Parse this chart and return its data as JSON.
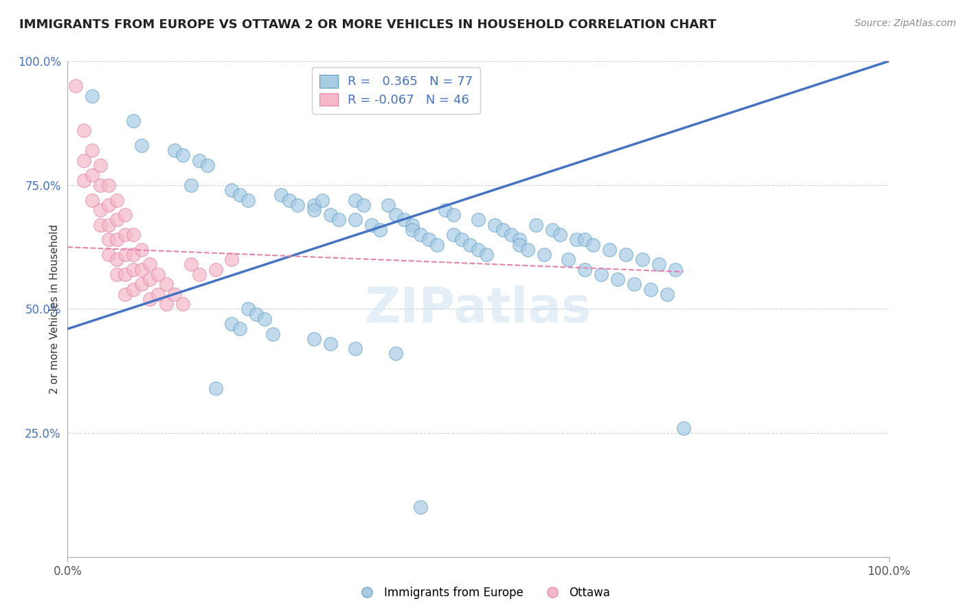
{
  "title": "IMMIGRANTS FROM EUROPE VS OTTAWA 2 OR MORE VEHICLES IN HOUSEHOLD CORRELATION CHART",
  "source": "Source: ZipAtlas.com",
  "ylabel": "2 or more Vehicles in Household",
  "legend_blue_r": "0.365",
  "legend_blue_n": "77",
  "legend_pink_r": "-0.067",
  "legend_pink_n": "46",
  "legend_blue_label": "Immigrants from Europe",
  "legend_pink_label": "Ottawa",
  "blue_color": "#a8cce4",
  "pink_color": "#f4b8c8",
  "blue_edge_color": "#5b9dc9",
  "pink_edge_color": "#e87fa8",
  "blue_line_color": "#4472c4",
  "pink_line_color": "#e87fa8",
  "background_color": "#ffffff",
  "grid_color": "#d0d0d0",
  "blue_scatter": [
    [
      0.03,
      0.93
    ],
    [
      0.08,
      0.88
    ],
    [
      0.09,
      0.83
    ],
    [
      0.13,
      0.82
    ],
    [
      0.14,
      0.81
    ],
    [
      0.16,
      0.8
    ],
    [
      0.17,
      0.79
    ],
    [
      0.15,
      0.75
    ],
    [
      0.2,
      0.74
    ],
    [
      0.21,
      0.73
    ],
    [
      0.22,
      0.72
    ],
    [
      0.26,
      0.73
    ],
    [
      0.27,
      0.72
    ],
    [
      0.28,
      0.71
    ],
    [
      0.3,
      0.71
    ],
    [
      0.3,
      0.7
    ],
    [
      0.31,
      0.72
    ],
    [
      0.32,
      0.69
    ],
    [
      0.33,
      0.68
    ],
    [
      0.35,
      0.72
    ],
    [
      0.35,
      0.68
    ],
    [
      0.36,
      0.71
    ],
    [
      0.37,
      0.67
    ],
    [
      0.38,
      0.66
    ],
    [
      0.39,
      0.71
    ],
    [
      0.4,
      0.69
    ],
    [
      0.41,
      0.68
    ],
    [
      0.42,
      0.67
    ],
    [
      0.42,
      0.66
    ],
    [
      0.43,
      0.65
    ],
    [
      0.44,
      0.64
    ],
    [
      0.45,
      0.63
    ],
    [
      0.46,
      0.7
    ],
    [
      0.47,
      0.69
    ],
    [
      0.47,
      0.65
    ],
    [
      0.48,
      0.64
    ],
    [
      0.49,
      0.63
    ],
    [
      0.5,
      0.62
    ],
    [
      0.5,
      0.68
    ],
    [
      0.51,
      0.61
    ],
    [
      0.52,
      0.67
    ],
    [
      0.53,
      0.66
    ],
    [
      0.54,
      0.65
    ],
    [
      0.55,
      0.64
    ],
    [
      0.55,
      0.63
    ],
    [
      0.56,
      0.62
    ],
    [
      0.57,
      0.67
    ],
    [
      0.58,
      0.61
    ],
    [
      0.59,
      0.66
    ],
    [
      0.6,
      0.65
    ],
    [
      0.61,
      0.6
    ],
    [
      0.62,
      0.64
    ],
    [
      0.63,
      0.58
    ],
    [
      0.63,
      0.64
    ],
    [
      0.64,
      0.63
    ],
    [
      0.65,
      0.57
    ],
    [
      0.66,
      0.62
    ],
    [
      0.67,
      0.56
    ],
    [
      0.68,
      0.61
    ],
    [
      0.69,
      0.55
    ],
    [
      0.7,
      0.6
    ],
    [
      0.71,
      0.54
    ],
    [
      0.72,
      0.59
    ],
    [
      0.73,
      0.53
    ],
    [
      0.74,
      0.58
    ],
    [
      0.2,
      0.47
    ],
    [
      0.21,
      0.46
    ],
    [
      0.22,
      0.5
    ],
    [
      0.23,
      0.49
    ],
    [
      0.24,
      0.48
    ],
    [
      0.25,
      0.45
    ],
    [
      0.3,
      0.44
    ],
    [
      0.32,
      0.43
    ],
    [
      0.35,
      0.42
    ],
    [
      0.4,
      0.41
    ],
    [
      0.75,
      0.26
    ],
    [
      0.18,
      0.34
    ],
    [
      0.43,
      0.1
    ]
  ],
  "pink_scatter": [
    [
      0.01,
      0.95
    ],
    [
      0.02,
      0.86
    ],
    [
      0.02,
      0.8
    ],
    [
      0.02,
      0.76
    ],
    [
      0.03,
      0.82
    ],
    [
      0.03,
      0.77
    ],
    [
      0.03,
      0.72
    ],
    [
      0.04,
      0.79
    ],
    [
      0.04,
      0.75
    ],
    [
      0.04,
      0.7
    ],
    [
      0.04,
      0.67
    ],
    [
      0.05,
      0.75
    ],
    [
      0.05,
      0.71
    ],
    [
      0.05,
      0.67
    ],
    [
      0.05,
      0.64
    ],
    [
      0.05,
      0.61
    ],
    [
      0.06,
      0.72
    ],
    [
      0.06,
      0.68
    ],
    [
      0.06,
      0.64
    ],
    [
      0.06,
      0.6
    ],
    [
      0.06,
      0.57
    ],
    [
      0.07,
      0.69
    ],
    [
      0.07,
      0.65
    ],
    [
      0.07,
      0.61
    ],
    [
      0.07,
      0.57
    ],
    [
      0.07,
      0.53
    ],
    [
      0.08,
      0.65
    ],
    [
      0.08,
      0.61
    ],
    [
      0.08,
      0.58
    ],
    [
      0.08,
      0.54
    ],
    [
      0.09,
      0.62
    ],
    [
      0.09,
      0.58
    ],
    [
      0.09,
      0.55
    ],
    [
      0.1,
      0.59
    ],
    [
      0.1,
      0.56
    ],
    [
      0.1,
      0.52
    ],
    [
      0.11,
      0.57
    ],
    [
      0.11,
      0.53
    ],
    [
      0.12,
      0.55
    ],
    [
      0.12,
      0.51
    ],
    [
      0.13,
      0.53
    ],
    [
      0.14,
      0.51
    ],
    [
      0.15,
      0.59
    ],
    [
      0.16,
      0.57
    ],
    [
      0.18,
      0.58
    ],
    [
      0.2,
      0.6
    ]
  ],
  "blue_line_x": [
    0.0,
    1.0
  ],
  "blue_line_y": [
    0.46,
    1.0
  ],
  "pink_line_x": [
    0.0,
    0.75
  ],
  "pink_line_y": [
    0.625,
    0.575
  ],
  "xlim": [
    0.0,
    1.0
  ],
  "ylim": [
    0.0,
    1.0
  ],
  "yticks": [
    0.25,
    0.5,
    0.75,
    1.0
  ],
  "ytick_labels": [
    "25.0%",
    "50.0%",
    "75.0%",
    "100.0%"
  ],
  "xticks": [
    0.0,
    1.0
  ],
  "xtick_labels": [
    "0.0%",
    "100.0%"
  ]
}
